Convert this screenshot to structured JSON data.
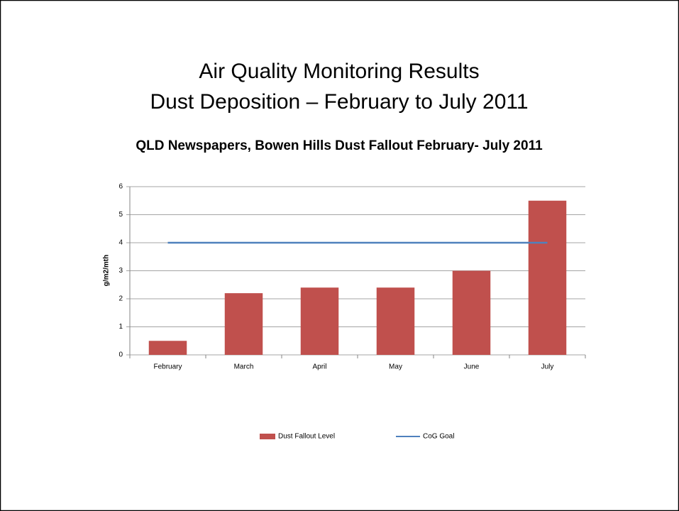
{
  "slide": {
    "title_lines": [
      "Air Quality Monitoring Results",
      "Dust Deposition – February to July 2011"
    ]
  },
  "chart_data": {
    "type": "bar",
    "title": "QLD Newspapers, Bowen Hills Dust Fallout February- July 2011",
    "y_label": "g/m2/mth",
    "categories": [
      "February",
      "March",
      "April",
      "May",
      "June",
      "July"
    ],
    "series": [
      {
        "name": "Dust Fallout Level",
        "type": "bar",
        "color": "#c0504d",
        "values": [
          0.5,
          2.2,
          2.4,
          2.4,
          3.0,
          5.5
        ]
      },
      {
        "name": "CoG Goal",
        "type": "line",
        "color": "#4f81bd",
        "values": [
          4,
          4,
          4,
          4,
          4,
          4
        ]
      }
    ],
    "ylim": [
      0,
      6
    ],
    "yticks": [
      0,
      1,
      2,
      3,
      4,
      5,
      6
    ],
    "grid": true,
    "legend": "bottom"
  }
}
